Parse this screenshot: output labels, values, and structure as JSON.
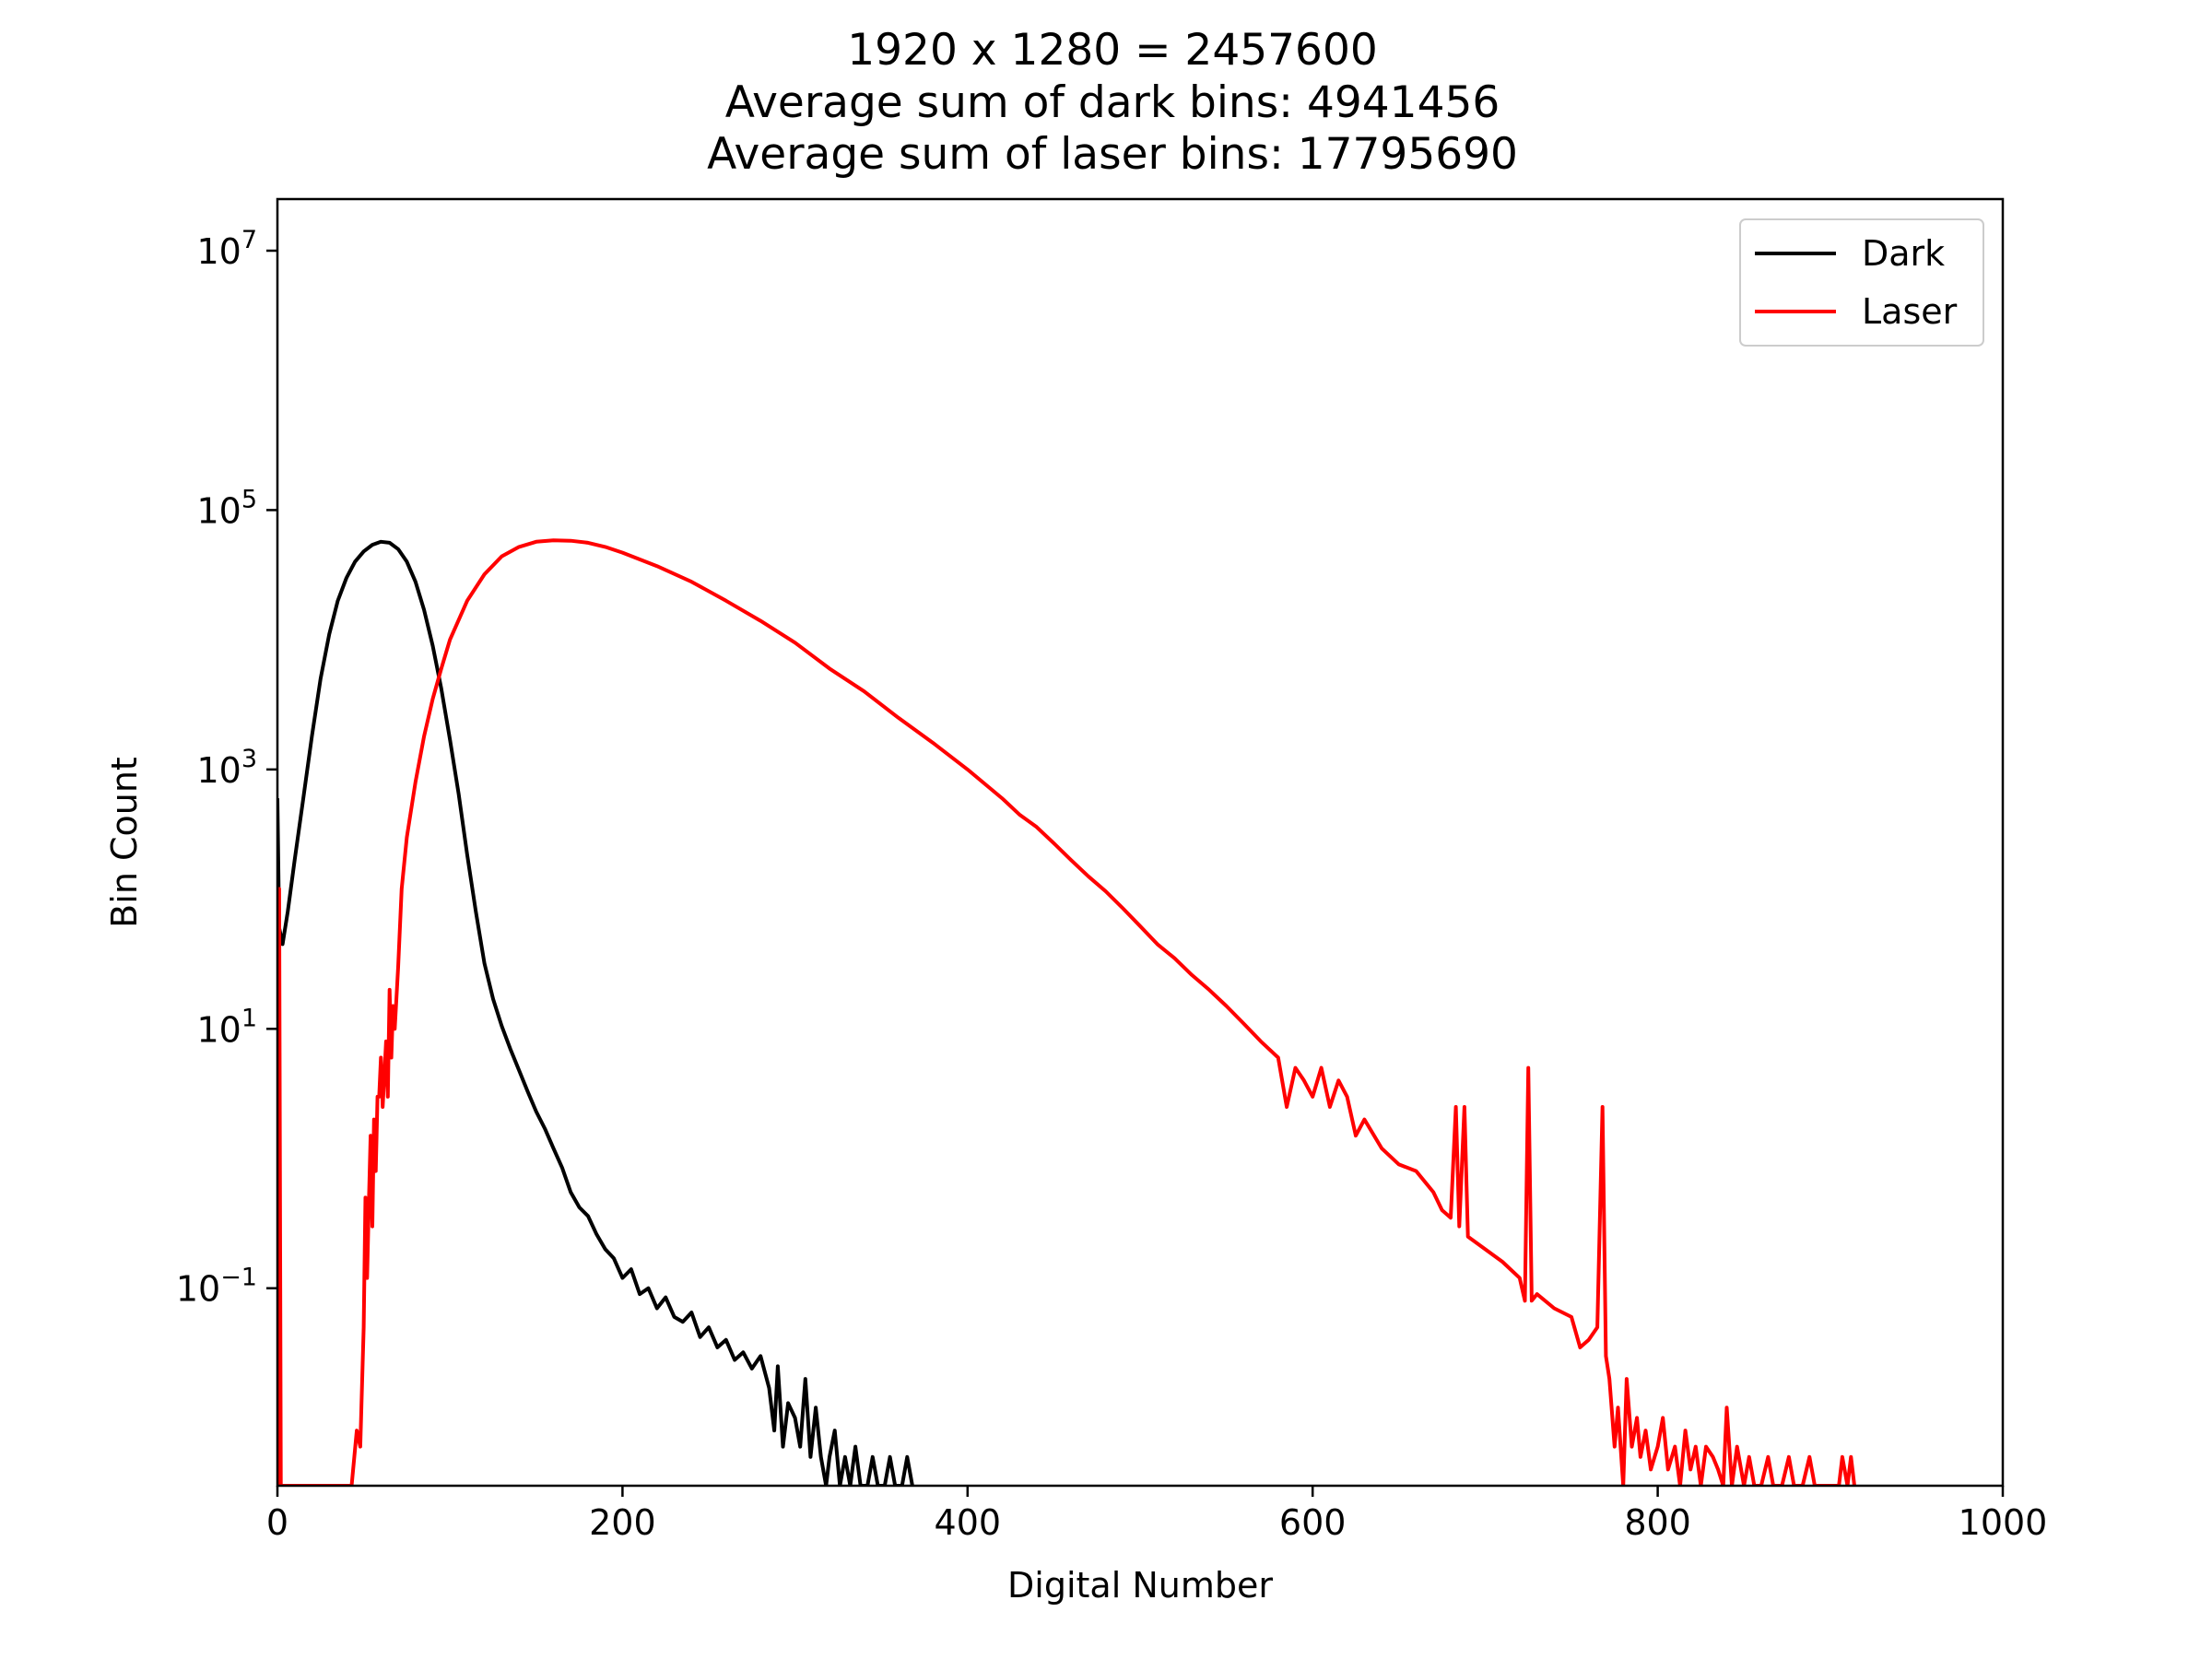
{
  "chart_data": {
    "type": "line",
    "title_lines": [
      "1920 x 1280 = 2457600",
      "Average sum of dark bins: 4941456",
      "Average sum of laser bins: 17795690"
    ],
    "xlabel": "Digital Number",
    "ylabel": "Bin Count",
    "xlim": [
      0,
      1000
    ],
    "ylim": [
      0.003,
      25000000
    ],
    "yscale": "log",
    "x_ticks": [
      0,
      200,
      400,
      600,
      800,
      1000
    ],
    "y_ticks": [
      {
        "value": 0.1,
        "base": "10",
        "exp": "−1"
      },
      {
        "value": 10,
        "base": "10",
        "exp": "1"
      },
      {
        "value": 1000,
        "base": "10",
        "exp": "3"
      },
      {
        "value": 100000,
        "base": "10",
        "exp": "5"
      },
      {
        "value": 10000000,
        "base": "10",
        "exp": "7"
      }
    ],
    "grid": false,
    "legend_position": "top-right",
    "series": [
      {
        "name": "Dark",
        "color": "#000000",
        "points": [
          [
            0,
            600
          ],
          [
            1,
            60
          ],
          [
            3,
            45
          ],
          [
            6,
            80
          ],
          [
            10,
            200
          ],
          [
            15,
            600
          ],
          [
            20,
            1800
          ],
          [
            25,
            5000
          ],
          [
            30,
            11000
          ],
          [
            35,
            20000
          ],
          [
            40,
            30000
          ],
          [
            45,
            40000
          ],
          [
            50,
            48000
          ],
          [
            55,
            54000
          ],
          [
            60,
            57000
          ],
          [
            65,
            56000
          ],
          [
            70,
            50000
          ],
          [
            75,
            40000
          ],
          [
            80,
            28000
          ],
          [
            85,
            17000
          ],
          [
            90,
            9000
          ],
          [
            95,
            4200
          ],
          [
            100,
            1700
          ],
          [
            105,
            650
          ],
          [
            110,
            220
          ],
          [
            115,
            80
          ],
          [
            120,
            32
          ],
          [
            125,
            17
          ],
          [
            130,
            10.5
          ],
          [
            135,
            7
          ],
          [
            140,
            4.8
          ],
          [
            145,
            3.3
          ],
          [
            150,
            2.3
          ],
          [
            155,
            1.7
          ],
          [
            160,
            1.2
          ],
          [
            165,
            0.85
          ],
          [
            170,
            0.55
          ],
          [
            175,
            0.42
          ],
          [
            180,
            0.36
          ],
          [
            185,
            0.26
          ],
          [
            190,
            0.2
          ],
          [
            195,
            0.17
          ],
          [
            200,
            0.12
          ],
          [
            205,
            0.14
          ],
          [
            210,
            0.09
          ],
          [
            215,
            0.1
          ],
          [
            220,
            0.07
          ],
          [
            225,
            0.085
          ],
          [
            230,
            0.06
          ],
          [
            235,
            0.055
          ],
          [
            240,
            0.065
          ],
          [
            245,
            0.042
          ],
          [
            250,
            0.05
          ],
          [
            255,
            0.035
          ],
          [
            260,
            0.04
          ],
          [
            265,
            0.028
          ],
          [
            270,
            0.032
          ],
          [
            275,
            0.024
          ],
          [
            280,
            0.03
          ],
          [
            285,
            0.017
          ],
          [
            288,
            0.008
          ],
          [
            290,
            0.025
          ],
          [
            293,
            0.006
          ],
          [
            296,
            0.013
          ],
          [
            300,
            0.01
          ],
          [
            303,
            0.006
          ],
          [
            306,
            0.02
          ],
          [
            309,
            0.005
          ],
          [
            312,
            0.012
          ],
          [
            315,
            0.005
          ],
          [
            318,
            0.003
          ],
          [
            320,
            0.005
          ],
          [
            323,
            0.008
          ],
          [
            326,
            0.003
          ],
          [
            329,
            0.005
          ],
          [
            332,
            0.003
          ],
          [
            335,
            0.006
          ],
          [
            338,
            0.003
          ],
          [
            342,
            0.003
          ],
          [
            345,
            0.005
          ],
          [
            348,
            0.003
          ],
          [
            352,
            0.003
          ],
          [
            355,
            0.005
          ],
          [
            358,
            0.003
          ],
          [
            362,
            0.003
          ],
          [
            365,
            0.005
          ],
          [
            368,
            0.003
          ]
        ]
      },
      {
        "name": "Laser",
        "color": "#ff0000",
        "points": [
          [
            0,
            0.003
          ],
          [
            1,
            120
          ],
          [
            2,
            0.003
          ],
          [
            43,
            0.003
          ],
          [
            46,
            0.008
          ],
          [
            48,
            0.006
          ],
          [
            50,
            0.05
          ],
          [
            51,
            0.5
          ],
          [
            52,
            0.12
          ],
          [
            53,
            0.45
          ],
          [
            54,
            1.5
          ],
          [
            55,
            0.3
          ],
          [
            56,
            2
          ],
          [
            57,
            0.8
          ],
          [
            58,
            3
          ],
          [
            59,
            3
          ],
          [
            60,
            6
          ],
          [
            61,
            2.5
          ],
          [
            62,
            4.5
          ],
          [
            63,
            8
          ],
          [
            64,
            3
          ],
          [
            65,
            20
          ],
          [
            66,
            6
          ],
          [
            67,
            15
          ],
          [
            68,
            10
          ],
          [
            70,
            30
          ],
          [
            72,
            120
          ],
          [
            75,
            300
          ],
          [
            80,
            800
          ],
          [
            85,
            1800
          ],
          [
            90,
            3500
          ],
          [
            95,
            6000
          ],
          [
            100,
            10000
          ],
          [
            110,
            20000
          ],
          [
            120,
            32000
          ],
          [
            130,
            44000
          ],
          [
            140,
            52000
          ],
          [
            150,
            57000
          ],
          [
            160,
            58500
          ],
          [
            170,
            58000
          ],
          [
            180,
            56000
          ],
          [
            190,
            52000
          ],
          [
            200,
            47000
          ],
          [
            220,
            37000
          ],
          [
            240,
            28000
          ],
          [
            260,
            20000
          ],
          [
            280,
            14000
          ],
          [
            300,
            9500
          ],
          [
            320,
            6000
          ],
          [
            340,
            4000
          ],
          [
            360,
            2500
          ],
          [
            380,
            1600
          ],
          [
            400,
            1000
          ],
          [
            420,
            600
          ],
          [
            430,
            450
          ],
          [
            440,
            360
          ],
          [
            450,
            270
          ],
          [
            460,
            200
          ],
          [
            470,
            150
          ],
          [
            480,
            115
          ],
          [
            490,
            85
          ],
          [
            500,
            62
          ],
          [
            510,
            45
          ],
          [
            520,
            35
          ],
          [
            530,
            26
          ],
          [
            540,
            20
          ],
          [
            550,
            15
          ],
          [
            560,
            11
          ],
          [
            570,
            8
          ],
          [
            580,
            6
          ],
          [
            585,
            2.5
          ],
          [
            590,
            5
          ],
          [
            595,
            4
          ],
          [
            600,
            3
          ],
          [
            605,
            5
          ],
          [
            610,
            2.5
          ],
          [
            615,
            4
          ],
          [
            620,
            3
          ],
          [
            625,
            1.5
          ],
          [
            630,
            2
          ],
          [
            640,
            1.2
          ],
          [
            650,
            0.9
          ],
          [
            660,
            0.8
          ],
          [
            670,
            0.55
          ],
          [
            675,
            0.4
          ],
          [
            680,
            0.35
          ],
          [
            683,
            2.5
          ],
          [
            685,
            0.3
          ],
          [
            688,
            2.5
          ],
          [
            690,
            0.25
          ],
          [
            700,
            0.2
          ],
          [
            710,
            0.16
          ],
          [
            720,
            0.12
          ],
          [
            723,
            0.08
          ],
          [
            725,
            5
          ],
          [
            727,
            0.08
          ],
          [
            730,
            0.09
          ],
          [
            740,
            0.07
          ],
          [
            750,
            0.06
          ],
          [
            755,
            0.035
          ],
          [
            760,
            0.04
          ],
          [
            765,
            0.05
          ],
          [
            768,
            2.5
          ],
          [
            770,
            0.03
          ],
          [
            772,
            0.02
          ],
          [
            775,
            0.006
          ],
          [
            777,
            0.012
          ],
          [
            780,
            0.003
          ],
          [
            782,
            0.02
          ],
          [
            785,
            0.006
          ],
          [
            788,
            0.01
          ],
          [
            790,
            0.005
          ],
          [
            793,
            0.008
          ],
          [
            796,
            0.004
          ],
          [
            800,
            0.006
          ],
          [
            803,
            0.01
          ],
          [
            806,
            0.004
          ],
          [
            810,
            0.006
          ],
          [
            813,
            0.003
          ],
          [
            816,
            0.008
          ],
          [
            819,
            0.004
          ],
          [
            822,
            0.006
          ],
          [
            825,
            0.003
          ],
          [
            828,
            0.006
          ],
          [
            832,
            0.005
          ],
          [
            835,
            0.004
          ],
          [
            838,
            0.003
          ],
          [
            840,
            0.012
          ],
          [
            843,
            0.003
          ],
          [
            846,
            0.006
          ],
          [
            850,
            0.003
          ],
          [
            853,
            0.005
          ],
          [
            856,
            0.003
          ],
          [
            860,
            0.003
          ],
          [
            864,
            0.005
          ],
          [
            867,
            0.003
          ],
          [
            872,
            0.003
          ],
          [
            876,
            0.005
          ],
          [
            879,
            0.003
          ],
          [
            884,
            0.003
          ],
          [
            888,
            0.005
          ],
          [
            891,
            0.003
          ],
          [
            905,
            0.003
          ],
          [
            907,
            0.005
          ],
          [
            910,
            0.003
          ],
          [
            912,
            0.005
          ],
          [
            914,
            0.003
          ]
        ]
      }
    ]
  }
}
